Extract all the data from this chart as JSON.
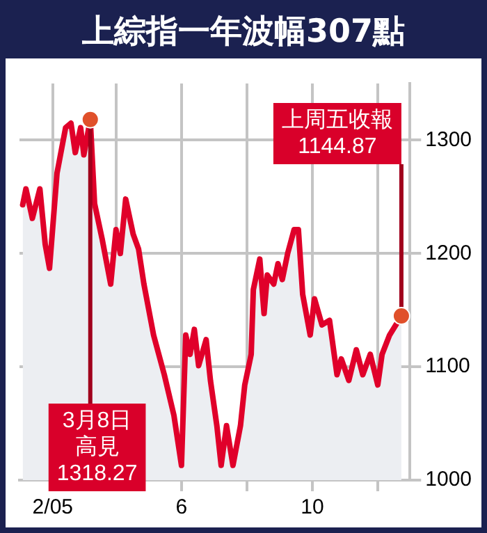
{
  "chart_data": {
    "type": "area",
    "title": "上綜指一年波幅307點",
    "x": [
      "2005-01-04",
      "2005-01-07",
      "2005-01-13",
      "2005-01-20",
      "2005-01-25",
      "2005-01-29",
      "2005-02-05",
      "2005-02-13",
      "2005-02-18",
      "2005-02-22",
      "2005-02-27",
      "2005-03-02",
      "2005-03-08",
      "2005-03-12",
      "2005-03-19",
      "2005-03-27",
      "2005-04-01",
      "2005-04-05",
      "2005-04-10",
      "2005-04-17",
      "2005-04-22",
      "2005-04-27",
      "2005-05-06",
      "2005-05-16",
      "2005-05-25",
      "2005-06-01",
      "2005-06-05",
      "2005-06-09",
      "2005-06-13",
      "2005-06-17",
      "2005-06-24",
      "2005-06-28",
      "2005-07-04",
      "2005-07-08",
      "2005-07-13",
      "2005-07-19",
      "2005-07-26",
      "2005-07-30",
      "2005-08-05",
      "2005-08-07",
      "2005-08-13",
      "2005-08-17",
      "2005-08-20",
      "2005-08-26",
      "2005-08-30",
      "2005-09-03",
      "2005-09-08",
      "2005-09-14",
      "2005-09-18",
      "2005-09-22",
      "2005-09-29",
      "2005-10-03",
      "2005-10-10",
      "2005-10-17",
      "2005-10-24",
      "2005-10-28",
      "2005-11-04",
      "2005-11-11",
      "2005-11-17",
      "2005-11-24",
      "2005-12-01",
      "2005-12-05",
      "2005-12-12",
      "2005-12-23"
    ],
    "series": [
      {
        "color": "#e0002a",
        "values": [
          1243,
          1257,
          1231,
          1257,
          1208,
          1187,
          1271,
          1311,
          1315,
          1289,
          1311,
          1287,
          1318.27,
          1244,
          1213,
          1173,
          1221,
          1200,
          1248,
          1217,
          1204,
          1173,
          1128,
          1093,
          1057,
          1013,
          1128,
          1111,
          1133,
          1101,
          1124,
          1088,
          1048,
          1013,
          1048,
          1013,
          1048,
          1084,
          1111,
          1168,
          1195,
          1147,
          1181,
          1173,
          1191,
          1177,
          1200,
          1221,
          1221,
          1164,
          1128,
          1160,
          1137,
          1141,
          1093,
          1107,
          1088,
          1115,
          1093,
          1111,
          1084,
          1111,
          1128,
          1144.87
        ]
      }
    ],
    "xlim": [
      "2005-01-01",
      "2005-12-31"
    ],
    "xticks": [
      {
        "value": "2005-02-01",
        "label": "2/05"
      },
      {
        "value": "2005-04-01",
        "label": null
      },
      {
        "value": "2005-06-01",
        "label": "6"
      },
      {
        "value": "2005-08-01",
        "label": null
      },
      {
        "value": "2005-10-01",
        "label": "10"
      },
      {
        "value": "2005-12-01",
        "label": null
      }
    ],
    "ylim": [
      1000,
      1350
    ],
    "yticks": [
      1000,
      1100,
      1200,
      1300
    ],
    "grid": true,
    "legend": false,
    "marker": "none",
    "line_style": "solid",
    "annotations": [
      {
        "text": "3月8日",
        "x": "2005-03-08",
        "y": 1318.27
      },
      "高見",
      "1318.27",
      {
        "text": "1144.87",
        "x": "2005-12-23",
        "y": 1144.87
      },
      "上周五收報"
    ]
  }
}
